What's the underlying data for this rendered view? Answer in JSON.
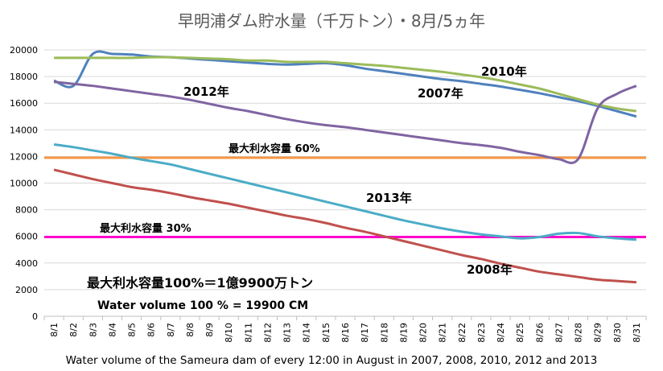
{
  "chart_data": {
    "type": "line",
    "title": "早明浦ダム貯水量（千万トン）・8月/5ヵ年",
    "caption": "Water volume of the Sameura dam of every 12:00 in August in 2007, 2008, 2010, 2012 and 2013",
    "xlabel": "",
    "ylabel": "",
    "ylim": [
      0,
      20000
    ],
    "yticks": [
      0,
      2000,
      4000,
      6000,
      8000,
      10000,
      12000,
      14000,
      16000,
      18000,
      20000
    ],
    "grid": true,
    "categories": [
      "8/1",
      "8/2",
      "8/3",
      "8/4",
      "8/5",
      "8/6",
      "8/7",
      "8/8",
      "8/9",
      "8/10",
      "8/11",
      "8/12",
      "8/13",
      "8/14",
      "8/15",
      "8/16",
      "8/17",
      "8/18",
      "8/19",
      "8/20",
      "8/21",
      "8/22",
      "8/23",
      "8/24",
      "8/25",
      "8/26",
      "8/27",
      "8/28",
      "8/29",
      "8/30",
      "8/31"
    ],
    "series": [
      {
        "name": "2007年",
        "color": "#4f81bd",
        "values": [
          17700,
          17300,
          19700,
          19700,
          19650,
          19500,
          19450,
          19350,
          19250,
          19150,
          19050,
          18950,
          18900,
          18950,
          19000,
          18850,
          18600,
          18400,
          18200,
          18000,
          17800,
          17650,
          17450,
          17250,
          17000,
          16750,
          16450,
          16150,
          15800,
          15400,
          15000
        ]
      },
      {
        "name": "2010年",
        "color": "#9bbb59",
        "values": [
          19400,
          19400,
          19400,
          19400,
          19400,
          19450,
          19450,
          19400,
          19350,
          19300,
          19200,
          19200,
          19100,
          19100,
          19100,
          19000,
          18900,
          18800,
          18650,
          18500,
          18350,
          18150,
          17950,
          17700,
          17400,
          17100,
          16700,
          16300,
          15900,
          15600,
          15400
        ]
      },
      {
        "name": "2012年",
        "color": "#8064a2",
        "values": [
          17600,
          17450,
          17300,
          17100,
          16900,
          16700,
          16500,
          16250,
          15950,
          15650,
          15400,
          15100,
          14800,
          14550,
          14350,
          14200,
          14000,
          13800,
          13600,
          13400,
          13200,
          13000,
          12850,
          12650,
          12350,
          12100,
          11800,
          11800,
          15600,
          16700,
          17300
        ]
      },
      {
        "name": "2013年",
        "color": "#4bacc6",
        "values": [
          12900,
          12700,
          12450,
          12200,
          11900,
          11650,
          11400,
          11050,
          10700,
          10350,
          10000,
          9650,
          9300,
          8950,
          8600,
          8250,
          7900,
          7550,
          7200,
          6900,
          6600,
          6350,
          6150,
          6000,
          5850,
          5950,
          6200,
          6250,
          6000,
          5850,
          5750
        ]
      },
      {
        "name": "2008年",
        "color": "#c0504d",
        "values": [
          11000,
          10650,
          10300,
          10000,
          9700,
          9500,
          9250,
          8950,
          8700,
          8450,
          8150,
          7850,
          7550,
          7300,
          7000,
          6650,
          6350,
          6000,
          5650,
          5300,
          4950,
          4600,
          4300,
          3950,
          3650,
          3350,
          3150,
          2950,
          2750,
          2650,
          2550
        ]
      }
    ],
    "reference_lines": [
      {
        "label": "最大利水容量 60%",
        "value": 11900,
        "color": "#f79646"
      },
      {
        "label": "最大利水容量 30%",
        "value": 5950,
        "color": "#ff00cc"
      }
    ],
    "annotations": {
      "capacity_jp": "最大利水容量100%＝1億9900万トン",
      "capacity_en": "Water volume 100 % = 19900 CM"
    }
  }
}
